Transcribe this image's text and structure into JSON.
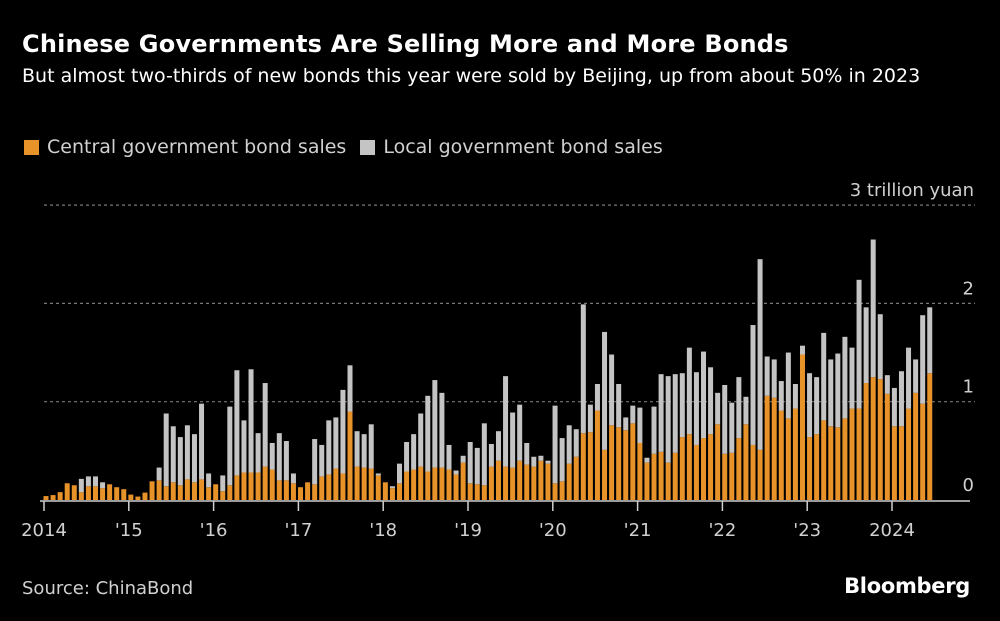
{
  "header": {
    "title": "Chinese Governments Are Selling More and More Bonds",
    "subtitle": "But almost two-thirds of new bonds this year were sold by Beijing, up from about 50% in 2023"
  },
  "footer": {
    "source": "Source: ChinaBond",
    "logo": "Bloomberg"
  },
  "colors": {
    "central": "#e8922a",
    "local": "#c4c4c4",
    "background": "#000000",
    "grid": "#777777"
  },
  "chart_data": {
    "type": "bar",
    "stacked": true,
    "frequency": "monthly",
    "start": "2014-01",
    "end": "2024-06",
    "ylim": [
      0,
      3
    ],
    "yunit_label": "3 trillion yuan",
    "yticks": [
      {
        "value": 0,
        "label": "0"
      },
      {
        "value": 1,
        "label": "1"
      },
      {
        "value": 2,
        "label": "2"
      },
      {
        "value": 3,
        "label": "3 trillion yuan"
      }
    ],
    "xticks": [
      "2014",
      "'15",
      "'16",
      "'17",
      "'18",
      "'19",
      "'20",
      "'21",
      "'22",
      "'23",
      "2024"
    ],
    "grid": true,
    "legend_position": "top-left",
    "series": [
      {
        "name": "Central government bond sales",
        "values": [
          0.04,
          0.05,
          0.08,
          0.17,
          0.15,
          0.08,
          0.14,
          0.14,
          0.12,
          0.16,
          0.13,
          0.11,
          0.055,
          0.035,
          0.075,
          0.19,
          0.2,
          0.14,
          0.18,
          0.15,
          0.21,
          0.18,
          0.21,
          0.13,
          0.16,
          0.09,
          0.15,
          0.25,
          0.28,
          0.28,
          0.28,
          0.34,
          0.31,
          0.2,
          0.2,
          0.17,
          0.13,
          0.18,
          0.16,
          0.24,
          0.26,
          0.32,
          0.27,
          0.9,
          0.34,
          0.33,
          0.32,
          0.25,
          0.18,
          0.12,
          0.17,
          0.29,
          0.31,
          0.34,
          0.29,
          0.33,
          0.33,
          0.31,
          0.26,
          0.38,
          0.17,
          0.16,
          0.15,
          0.34,
          0.4,
          0.34,
          0.33,
          0.4,
          0.36,
          0.34,
          0.4,
          0.37,
          0.17,
          0.19,
          0.37,
          0.44,
          0.68,
          0.69,
          0.91,
          0.51,
          0.76,
          0.74,
          0.71,
          0.78,
          0.58,
          0.38,
          0.47,
          0.49,
          0.38,
          0.48,
          0.64,
          0.67,
          0.56,
          0.63,
          0.67,
          0.77,
          0.47,
          0.48,
          0.63,
          0.77,
          0.56,
          0.51,
          1.06,
          1.04,
          0.91,
          0.83,
          0.93,
          1.48,
          0.64,
          0.67,
          0.81,
          0.75,
          0.74,
          0.83,
          0.93,
          0.93,
          1.19,
          1.25,
          1.23,
          1.08,
          0.75,
          0.75,
          0.93,
          1.09,
          0.98,
          1.29
        ]
      },
      {
        "name": "Local government bond sales",
        "values": [
          0,
          0,
          0,
          0,
          0,
          0.135,
          0.1,
          0.1,
          0.06,
          0,
          0,
          0,
          0,
          0,
          0,
          0,
          0.13,
          0.74,
          0.57,
          0.49,
          0.55,
          0.49,
          0.77,
          0.14,
          0,
          0.16,
          0.8,
          1.07,
          0.53,
          1.05,
          0.4,
          0.85,
          0.27,
          0.48,
          0.4,
          0.1,
          0,
          0,
          0.46,
          0.32,
          0.55,
          0.52,
          0.85,
          0.47,
          0.36,
          0.34,
          0.45,
          0.02,
          0,
          0.02,
          0.2,
          0.3,
          0.36,
          0.54,
          0.77,
          0.89,
          0.76,
          0.25,
          0.04,
          0.07,
          0.42,
          0.37,
          0.63,
          0.23,
          0.3,
          0.92,
          0.56,
          0.57,
          0.22,
          0.1,
          0.05,
          0.03,
          0.79,
          0.44,
          0.39,
          0.28,
          1.31,
          0.28,
          0.27,
          1.2,
          0.72,
          0.44,
          0.13,
          0.18,
          0.36,
          0.05,
          0.48,
          0.79,
          0.88,
          0.8,
          0.65,
          0.88,
          0.74,
          0.88,
          0.68,
          0.32,
          0.7,
          0.51,
          0.62,
          0.28,
          1.22,
          1.94,
          0.4,
          0.39,
          0.3,
          0.67,
          0.25,
          0.09,
          0.65,
          0.58,
          0.89,
          0.68,
          0.75,
          0.83,
          0.62,
          1.31,
          0.77,
          1.4,
          0.66,
          0.19,
          0.39,
          0.56,
          0.62,
          0.34,
          0.9,
          0.67
        ]
      }
    ]
  }
}
